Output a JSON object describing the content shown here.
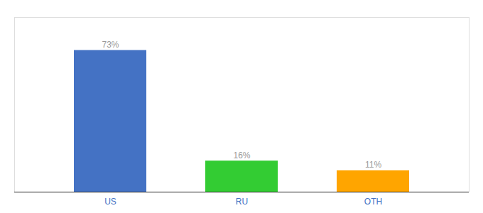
{
  "chart_data": {
    "type": "bar",
    "categories": [
      "US",
      "RU",
      "OTH"
    ],
    "values": [
      73,
      16,
      11
    ],
    "value_labels": [
      "73%",
      "16%",
      "11%"
    ],
    "colors": [
      "#4472C4",
      "#33CC33",
      "#FFA500"
    ],
    "ylim": [
      0,
      90
    ],
    "data_labels": true,
    "tick_labels": "x",
    "grid": false
  }
}
